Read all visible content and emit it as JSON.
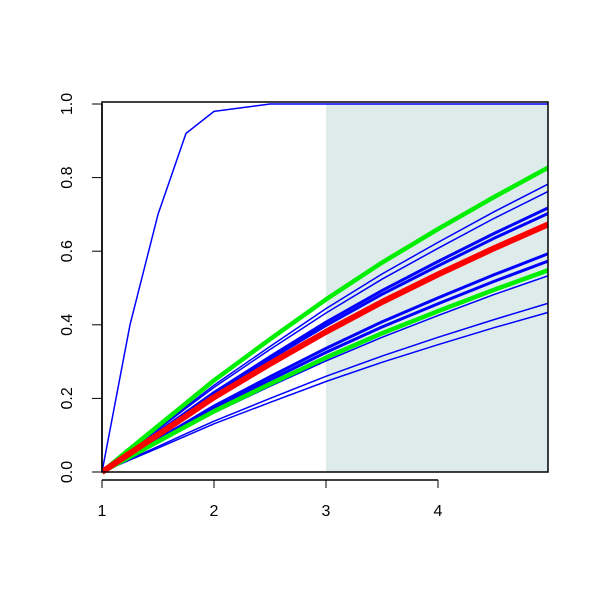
{
  "chart_data": {
    "type": "line",
    "x": [
      1,
      1.25,
      1.5,
      1.75,
      2,
      2.5,
      3,
      3.5,
      4,
      4.5,
      5
    ],
    "xlim": [
      1,
      5
    ],
    "ylim": [
      0,
      1
    ],
    "xticks": [
      1,
      2,
      3,
      4
    ],
    "yticks": [
      {
        "value": 0,
        "label": "0.0"
      },
      0.2,
      0.4,
      0.6,
      0.8,
      {
        "value": 1,
        "label": "1.0"
      }
    ],
    "shade": {
      "from": 3,
      "to": 5,
      "color": "#deebeb"
    },
    "series": [
      {
        "color": "#0000ff",
        "width": 1.5,
        "values": [
          0,
          0.4,
          0.7,
          0.92,
          0.98,
          1,
          1,
          1,
          1,
          1,
          1
        ]
      },
      {
        "color": "#0000ff",
        "width": 1.5,
        "values": [
          0,
          0.059,
          0.118,
          0.177,
          0.236,
          0.341,
          0.444,
          0.538,
          0.624,
          0.707,
          0.785
        ]
      },
      {
        "color": "#0000ff",
        "width": 1.5,
        "values": [
          0,
          0.058,
          0.115,
          0.173,
          0.23,
          0.333,
          0.432,
          0.524,
          0.608,
          0.689,
          0.765
        ]
      },
      {
        "color": "#0000ff",
        "width": 3,
        "values": [
          0,
          0.054,
          0.108,
          0.162,
          0.216,
          0.313,
          0.407,
          0.493,
          0.572,
          0.648,
          0.72
        ]
      },
      {
        "color": "#0000ff",
        "width": 3,
        "values": [
          0,
          0.053,
          0.106,
          0.159,
          0.212,
          0.307,
          0.398,
          0.483,
          0.56,
          0.635,
          0.705
        ]
      },
      {
        "color": "#0000ff",
        "width": 3,
        "values": [
          0,
          0.045,
          0.089,
          0.134,
          0.179,
          0.259,
          0.336,
          0.408,
          0.473,
          0.536,
          0.595
        ]
      },
      {
        "color": "#0000ff",
        "width": 3,
        "values": [
          0,
          0.043,
          0.086,
          0.13,
          0.173,
          0.25,
          0.325,
          0.394,
          0.457,
          0.518,
          0.575
        ]
      },
      {
        "color": "#0000ff",
        "width": 1.5,
        "values": [
          0,
          0.04,
          0.08,
          0.121,
          0.161,
          0.233,
          0.302,
          0.366,
          0.425,
          0.482,
          0.535
        ]
      },
      {
        "color": "#0000ff",
        "width": 1.5,
        "values": [
          0,
          0.035,
          0.069,
          0.104,
          0.138,
          0.2,
          0.26,
          0.315,
          0.366,
          0.414,
          0.46
        ]
      },
      {
        "color": "#0000ff",
        "width": 1.5,
        "values": [
          0,
          0.033,
          0.065,
          0.098,
          0.131,
          0.189,
          0.246,
          0.298,
          0.346,
          0.392,
          0.435
        ]
      },
      {
        "color": "#00ee00",
        "width": 4.5,
        "values": [
          0,
          0.063,
          0.125,
          0.187,
          0.249,
          0.361,
          0.469,
          0.569,
          0.66,
          0.747,
          0.83
        ]
      },
      {
        "color": "#00ee00",
        "width": 4.5,
        "values": [
          0,
          0.041,
          0.083,
          0.124,
          0.165,
          0.239,
          0.311,
          0.377,
          0.437,
          0.495,
          0.55
        ]
      },
      {
        "color": "#ff0000",
        "width": 6,
        "values": [
          0,
          0.051,
          0.101,
          0.152,
          0.203,
          0.294,
          0.381,
          0.462,
          0.537,
          0.608,
          0.675
        ]
      }
    ]
  }
}
